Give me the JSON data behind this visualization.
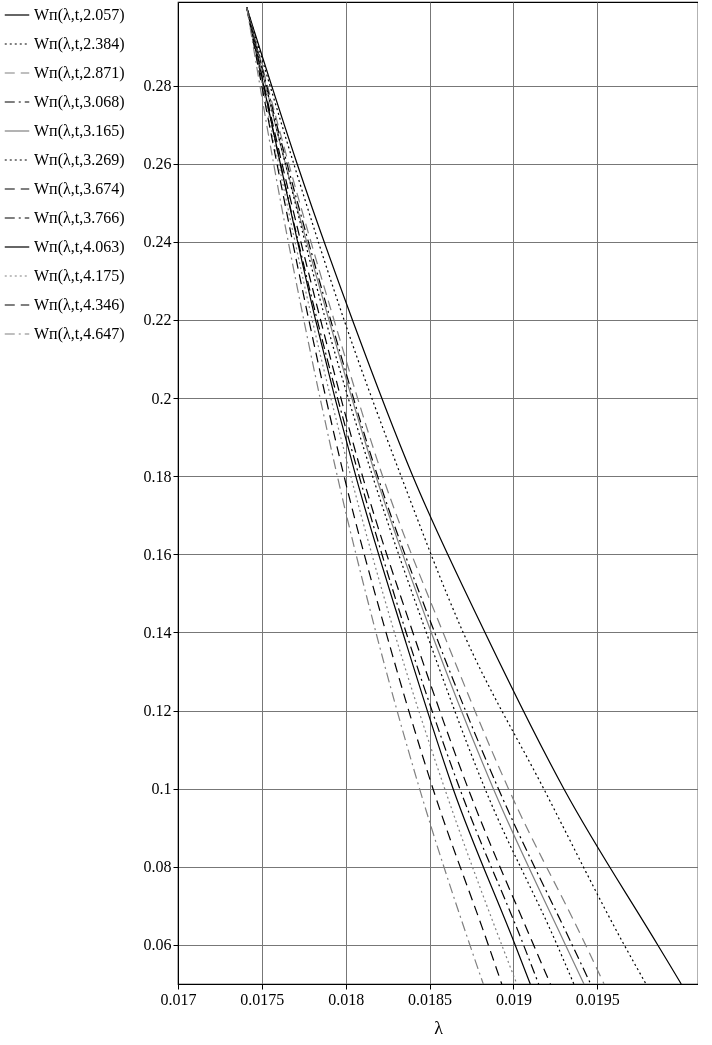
{
  "chart_data": {
    "type": "line",
    "xlabel": "λ",
    "xlim": [
      0.017,
      0.0201
    ],
    "ylim": [
      0.05,
      0.3014
    ],
    "xticks": [
      0.017,
      0.0175,
      0.018,
      0.0185,
      0.019,
      0.0195
    ],
    "yticks": [
      0.06,
      0.08,
      0.1,
      0.12,
      0.14,
      0.16,
      0.18,
      0.2,
      0.22,
      0.24,
      0.26,
      0.28
    ],
    "grid": true,
    "legend": "left",
    "marker": "none",
    "series": [
      {
        "name": "Wп(λ,t,2.057)",
        "color": "#000000",
        "line_style": "solid",
        "x": [
          0.01741,
          0.01771,
          0.01804,
          0.0184,
          0.01883,
          0.0193,
          0.01986,
          0.02
        ],
        "values": [
          0.3,
          0.26,
          0.22,
          0.18,
          0.14,
          0.1,
          0.06,
          0.05
        ]
      },
      {
        "name": "Wп(λ,t,2.384)",
        "color": "#000000",
        "line_style": "dotted",
        "x": [
          0.01741,
          0.01769,
          0.01799,
          0.01833,
          0.0187,
          0.01918,
          0.01966,
          0.01979
        ],
        "values": [
          0.3,
          0.26,
          0.22,
          0.18,
          0.14,
          0.1,
          0.06,
          0.05
        ]
      },
      {
        "name": "Wп(λ,t,2.871)",
        "color": "#808080",
        "line_style": "dashed",
        "x": [
          0.01741,
          0.01766,
          0.01793,
          0.01822,
          0.01858,
          0.01897,
          0.01943,
          0.01954
        ],
        "values": [
          0.3,
          0.26,
          0.22,
          0.18,
          0.14,
          0.1,
          0.06,
          0.05
        ]
      },
      {
        "name": "Wп(λ,t,3.068)",
        "color": "#000000",
        "line_style": "dashdot",
        "x": [
          0.01741,
          0.01765,
          0.01791,
          0.01819,
          0.01853,
          0.01891,
          0.01935,
          0.01946
        ],
        "values": [
          0.3,
          0.26,
          0.22,
          0.18,
          0.14,
          0.1,
          0.06,
          0.05
        ]
      },
      {
        "name": "Wп(λ,t,3.165)",
        "color": "#808080",
        "line_style": "solid",
        "x": [
          0.01741,
          0.01764,
          0.0179,
          0.01818,
          0.01851,
          0.01888,
          0.01931,
          0.01942
        ],
        "values": [
          0.3,
          0.26,
          0.22,
          0.18,
          0.14,
          0.1,
          0.06,
          0.05
        ]
      },
      {
        "name": "Wп(λ,t,3.269)",
        "color": "#000000",
        "line_style": "dotted",
        "x": [
          0.01741,
          0.01764,
          0.01788,
          0.01816,
          0.01848,
          0.01883,
          0.01926,
          0.01936
        ],
        "values": [
          0.3,
          0.26,
          0.22,
          0.18,
          0.14,
          0.1,
          0.06,
          0.05
        ]
      },
      {
        "name": "Wп(λ,t,3.674)",
        "color": "#000000",
        "line_style": "dashed",
        "x": [
          0.01741,
          0.01762,
          0.01785,
          0.0181,
          0.0184,
          0.01873,
          0.01912,
          0.01922
        ],
        "values": [
          0.3,
          0.26,
          0.22,
          0.18,
          0.14,
          0.1,
          0.06,
          0.05
        ]
      },
      {
        "name": "Wп(λ,t,3.766)",
        "color": "#000000",
        "line_style": "dashdot",
        "x": [
          0.01741,
          0.01761,
          0.01783,
          0.01808,
          0.01836,
          0.01868,
          0.01906,
          0.01915
        ],
        "values": [
          0.3,
          0.26,
          0.22,
          0.18,
          0.14,
          0.1,
          0.06,
          0.05
        ]
      },
      {
        "name": "Wп(λ,t,4.063)",
        "color": "#000000",
        "line_style": "solid",
        "x": [
          0.01741,
          0.01761,
          0.01782,
          0.01806,
          0.01834,
          0.01864,
          0.01901,
          0.0191
        ],
        "values": [
          0.3,
          0.26,
          0.22,
          0.18,
          0.14,
          0.1,
          0.06,
          0.05
        ]
      },
      {
        "name": "Wп(λ,t,4.175)",
        "color": "#808080",
        "line_style": "dotted",
        "x": [
          0.01741,
          0.0176,
          0.0178,
          0.01803,
          0.01829,
          0.01859,
          0.01893,
          0.01902
        ],
        "values": [
          0.3,
          0.26,
          0.22,
          0.18,
          0.14,
          0.1,
          0.06,
          0.05
        ]
      },
      {
        "name": "Wп(λ,t,4.346)",
        "color": "#000000",
        "line_style": "dashed",
        "x": [
          0.01741,
          0.01759,
          0.01778,
          0.01799,
          0.01824,
          0.01852,
          0.01885,
          0.01893
        ],
        "values": [
          0.3,
          0.26,
          0.22,
          0.18,
          0.14,
          0.1,
          0.06,
          0.05
        ]
      },
      {
        "name": "Wп(λ,t,4.647)",
        "color": "#808080",
        "line_style": "dashdot",
        "x": [
          0.01741,
          0.01757,
          0.01775,
          0.01795,
          0.01818,
          0.01844,
          0.01874,
          0.01882
        ],
        "values": [
          0.3,
          0.26,
          0.22,
          0.18,
          0.14,
          0.1,
          0.06,
          0.05
        ]
      }
    ]
  }
}
